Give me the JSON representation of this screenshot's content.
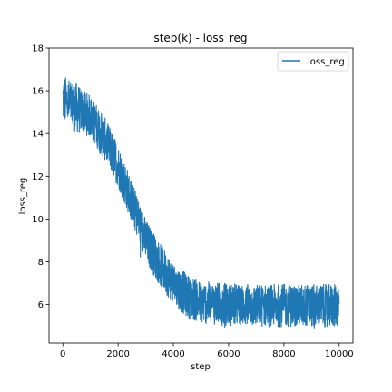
{
  "chart_data": {
    "type": "line",
    "title": "step(k) - loss_reg",
    "xlabel": "step",
    "ylabel": "loss_reg",
    "xlim": [
      -500,
      10500
    ],
    "ylim": [
      4.2,
      18
    ],
    "xticks": [
      0,
      2000,
      4000,
      6000,
      8000,
      10000
    ],
    "yticks": [
      6,
      8,
      10,
      12,
      14,
      16,
      18
    ],
    "legend": {
      "position": "top-right",
      "entries": [
        "loss_reg"
      ]
    },
    "series": [
      {
        "name": "loss_reg",
        "color": "#1f77b4",
        "x": [
          0,
          500,
          1000,
          1500,
          2000,
          2500,
          3000,
          3500,
          4000,
          4500,
          5000,
          6000,
          7000,
          8000,
          9000,
          10000
        ],
        "values": [
          15.6,
          15.2,
          14.8,
          13.8,
          12.5,
          10.8,
          9.0,
          7.9,
          7.0,
          6.4,
          6.1,
          6.0,
          5.95,
          5.95,
          5.95,
          5.95
        ],
        "noise_band": 1.0
      }
    ]
  }
}
